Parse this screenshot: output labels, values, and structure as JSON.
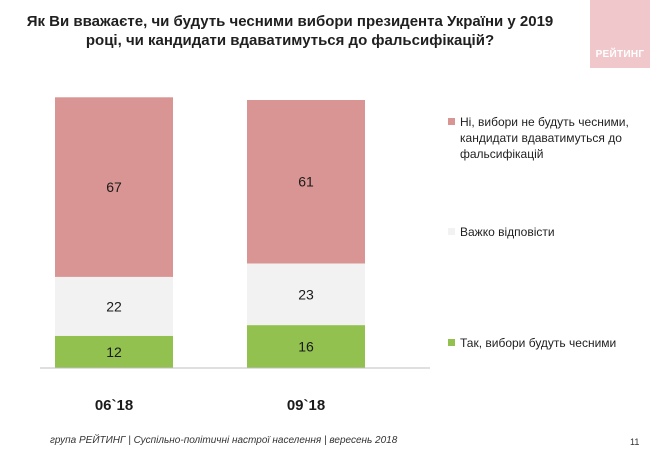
{
  "title": "Як Ви вважаєте, чи будуть чесними вибори президента України у 2019 році, чи кандидати вдаватимуться до фальсифікацій?",
  "logo_text": "РЕЙТИНГ",
  "footer": "група РЕЙТИНГ | Суспільно-політичні настрої населення | вересень 2018",
  "page_number": "11",
  "chart_data": {
    "type": "bar",
    "stacked": true,
    "categories": [
      "06`18",
      "09`18"
    ],
    "ylim": [
      0,
      100
    ],
    "series": [
      {
        "name": "Так, вибори будуть чесними",
        "color": "#92c14f",
        "values": [
          12,
          16
        ]
      },
      {
        "name": "Важко відповісти",
        "color": "#f2f2f2",
        "values": [
          22,
          23
        ]
      },
      {
        "name": "Ні, вибори не будуть чесними, кандидати вдаватимуться до фальсифікацій",
        "color": "#d99594",
        "values": [
          67,
          61
        ]
      }
    ]
  }
}
